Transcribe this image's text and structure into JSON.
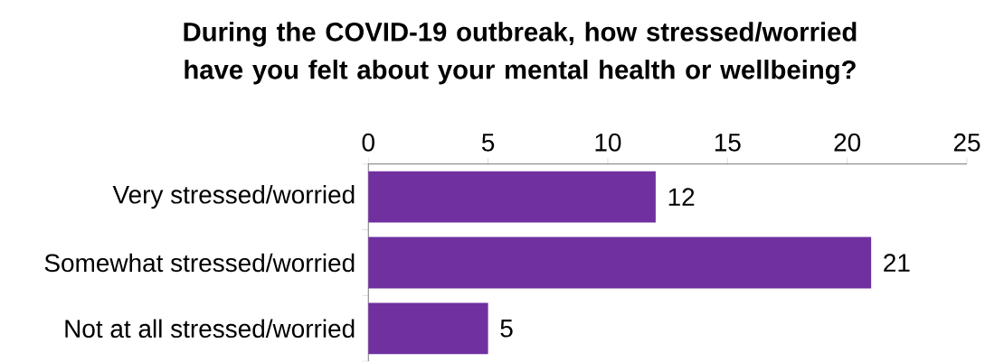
{
  "chart_data": {
    "type": "bar",
    "orientation": "horizontal",
    "title": "During the COVID-19 outbreak, how stressed/worried have you felt about your mental health or wellbeing?",
    "categories": [
      "Very stressed/worried",
      "Somewhat stressed/worried",
      "Not at all stressed/worried"
    ],
    "values": [
      12,
      21,
      5
    ],
    "color": "#7030a0",
    "xlim": [
      0,
      25
    ],
    "xticks": [
      0,
      5,
      10,
      15,
      20,
      25
    ],
    "data_labels": true
  }
}
